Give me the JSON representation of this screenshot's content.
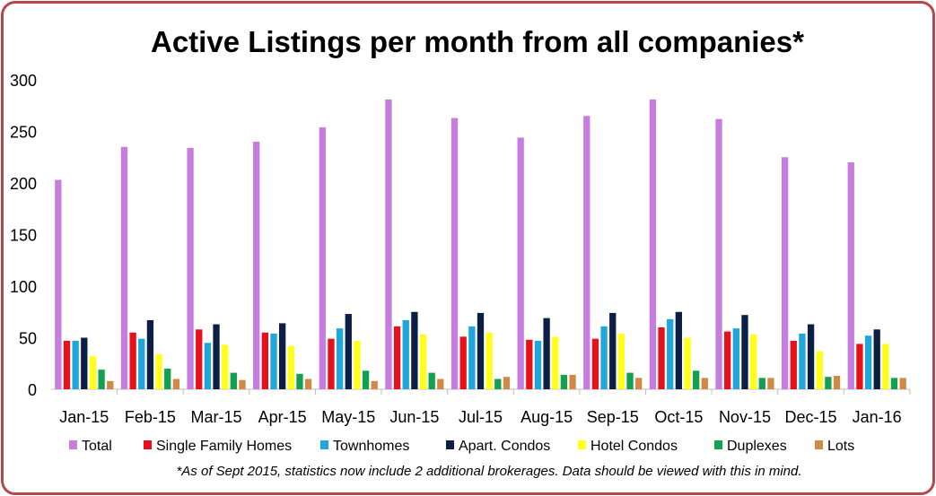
{
  "chart_data": {
    "type": "bar",
    "title": "Active Listings per month from all companies*",
    "note": "*As of Sept 2015, statistics now include 2 additional brokerages. Data should be viewed with this in mind.",
    "ylim": [
      0,
      300
    ],
    "yticks": [
      "0",
      "50",
      "100",
      "150",
      "200",
      "250",
      "300"
    ],
    "grid": false,
    "legend_position": "bottom",
    "categories": [
      "Jan-15",
      "Feb-15",
      "Mar-15",
      "Apr-15",
      "May-15",
      "Jun-15",
      "Jul-15",
      "Aug-15",
      "Sep-15",
      "Oct-15",
      "Nov-15",
      "Dec-15",
      "Jan-16"
    ],
    "series": [
      {
        "name": "Total",
        "color": "#c77ddf",
        "values": [
          203,
          235,
          234,
          240,
          254,
          281,
          263,
          244,
          265,
          281,
          262,
          225,
          220
        ]
      },
      {
        "name": "Single Family Homes",
        "color": "#e8101a",
        "values": [
          47,
          55,
          58,
          55,
          49,
          61,
          51,
          48,
          49,
          60,
          56,
          47,
          44
        ]
      },
      {
        "name": "Townhomes",
        "color": "#1fa6dc",
        "values": [
          47,
          49,
          45,
          54,
          59,
          67,
          61,
          47,
          61,
          68,
          59,
          54,
          52
        ]
      },
      {
        "name": "Apart. Condos",
        "color": "#0b1e45",
        "values": [
          50,
          67,
          63,
          64,
          73,
          75,
          74,
          69,
          74,
          75,
          72,
          63,
          58
        ]
      },
      {
        "name": "Hotel Condos",
        "color": "#ffff1a",
        "values": [
          32,
          34,
          43,
          42,
          47,
          53,
          55,
          51,
          54,
          50,
          53,
          37,
          44
        ]
      },
      {
        "name": "Duplexes",
        "color": "#12a150",
        "values": [
          19,
          20,
          16,
          15,
          18,
          16,
          10,
          14,
          16,
          18,
          11,
          12,
          11
        ]
      },
      {
        "name": "Lots",
        "color": "#d08a46",
        "values": [
          8,
          10,
          9,
          10,
          8,
          10,
          12,
          14,
          11,
          11,
          11,
          13,
          11
        ]
      }
    ]
  }
}
